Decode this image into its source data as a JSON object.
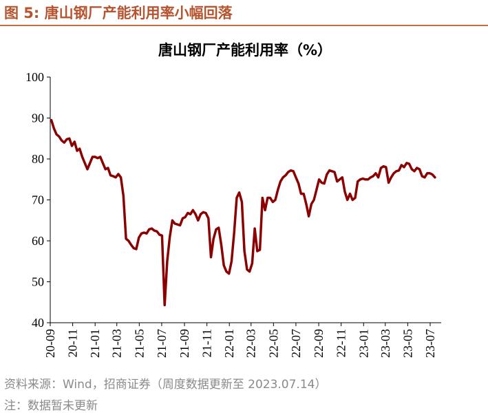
{
  "figure": {
    "title": "图 5: 唐山钢厂产能利用率小幅回落",
    "source": "资料来源：Wind，招商证券（周度数据更新至 2023.07.14）",
    "note": "注：数据暂未更新",
    "accent_color": "#c8693f",
    "title_color": "#b5542f"
  },
  "chart_data": {
    "type": "line",
    "title": "唐山钢厂产能利用率（%）",
    "xlabel": "",
    "ylabel": "",
    "ylim": [
      40,
      100
    ],
    "yticks": [
      40,
      50,
      60,
      70,
      80,
      90,
      100
    ],
    "xlim": [
      "2020-09-01",
      "2023-07-31"
    ],
    "xticks": [
      "20-09",
      "20-11",
      "21-01",
      "21-03",
      "21-05",
      "21-07",
      "21-09",
      "21-11",
      "22-01",
      "22-03",
      "22-05",
      "22-07",
      "22-09",
      "22-11",
      "23-01",
      "23-03",
      "23-05",
      "23-07"
    ],
    "grid": false,
    "legend": "none",
    "series_color": "#8b0000",
    "series": [
      {
        "x": [
          "2020-09-04",
          "2020-09-11",
          "2020-09-18",
          "2020-09-25",
          "2020-10-02",
          "2020-10-09",
          "2020-10-16",
          "2020-10-23",
          "2020-10-30",
          "2020-11-06",
          "2020-11-13",
          "2020-11-20",
          "2020-11-27",
          "2020-12-04",
          "2020-12-11",
          "2020-12-18",
          "2020-12-25",
          "2021-01-01",
          "2021-01-08",
          "2021-01-15",
          "2021-01-22",
          "2021-01-29",
          "2021-02-05",
          "2021-02-12",
          "2021-02-19",
          "2021-02-26",
          "2021-03-05",
          "2021-03-12",
          "2021-03-19",
          "2021-03-26",
          "2021-04-02",
          "2021-04-09",
          "2021-04-16",
          "2021-04-23",
          "2021-04-30",
          "2021-05-07",
          "2021-05-14",
          "2021-05-21",
          "2021-05-28",
          "2021-06-04",
          "2021-06-11",
          "2021-06-18",
          "2021-06-25",
          "2021-07-02",
          "2021-07-09",
          "2021-07-16",
          "2021-07-23",
          "2021-07-30",
          "2021-08-06",
          "2021-08-13",
          "2021-08-20",
          "2021-08-27",
          "2021-09-03",
          "2021-09-10",
          "2021-09-17",
          "2021-09-24",
          "2021-10-01",
          "2021-10-08",
          "2021-10-15",
          "2021-10-22",
          "2021-10-29",
          "2021-11-05",
          "2021-11-12",
          "2021-11-19",
          "2021-11-26",
          "2021-12-03",
          "2021-12-10",
          "2021-12-17",
          "2021-12-24",
          "2021-12-31",
          "2022-01-07",
          "2022-01-14",
          "2022-01-21",
          "2022-01-28",
          "2022-02-04",
          "2022-02-11",
          "2022-02-18",
          "2022-02-25",
          "2022-03-04",
          "2022-03-11",
          "2022-03-18",
          "2022-03-25",
          "2022-04-01",
          "2022-04-08",
          "2022-04-15",
          "2022-04-22",
          "2022-04-29",
          "2022-05-06",
          "2022-05-13",
          "2022-05-20",
          "2022-05-27",
          "2022-06-03",
          "2022-06-10",
          "2022-06-17",
          "2022-06-24",
          "2022-07-01",
          "2022-07-08",
          "2022-07-15",
          "2022-07-22",
          "2022-07-29",
          "2022-08-05",
          "2022-08-12",
          "2022-08-19",
          "2022-08-26",
          "2022-09-02",
          "2022-09-09",
          "2022-09-16",
          "2022-09-23",
          "2022-09-30",
          "2022-10-07",
          "2022-10-14",
          "2022-10-21",
          "2022-10-28",
          "2022-11-04",
          "2022-11-11",
          "2022-11-18",
          "2022-11-25",
          "2022-12-02",
          "2022-12-09",
          "2022-12-16",
          "2022-12-23",
          "2022-12-30",
          "2023-01-06",
          "2023-01-13",
          "2023-01-20",
          "2023-01-27",
          "2023-02-03",
          "2023-02-10",
          "2023-02-17",
          "2023-02-24",
          "2023-03-03",
          "2023-03-10",
          "2023-03-17",
          "2023-03-24",
          "2023-03-31",
          "2023-04-07",
          "2023-04-14",
          "2023-04-21",
          "2023-04-28",
          "2023-05-05",
          "2023-05-12",
          "2023-05-19",
          "2023-05-26",
          "2023-06-02",
          "2023-06-09",
          "2023-06-16",
          "2023-06-23",
          "2023-06-30",
          "2023-07-07",
          "2023-07-14"
        ],
        "values": [
          89.5,
          87.5,
          86.0,
          85.5,
          84.5,
          84.0,
          84.8,
          85.0,
          83.2,
          84.2,
          82.0,
          82.5,
          80.5,
          79.0,
          77.5,
          79.0,
          80.5,
          80.5,
          80.2,
          80.5,
          79.0,
          77.5,
          77.8,
          76.0,
          75.8,
          75.5,
          76.3,
          75.5,
          71.0,
          60.5,
          60.0,
          59.0,
          58.2,
          58.0,
          60.8,
          61.8,
          62.0,
          61.8,
          62.8,
          63.0,
          62.5,
          62.3,
          61.5,
          61.3,
          44.3,
          55.0,
          61.0,
          65.0,
          64.2,
          64.0,
          63.8,
          65.5,
          65.8,
          66.8,
          66.5,
          67.5,
          66.5,
          65.0,
          66.5,
          67.0,
          66.8,
          65.5,
          56.0,
          60.5,
          62.8,
          63.2,
          59.0,
          54.0,
          52.5,
          52.0,
          55.0,
          62.0,
          70.5,
          71.8,
          69.5,
          57.5,
          53.0,
          52.5,
          54.5,
          63.0,
          57.5,
          57.8,
          70.5,
          67.5,
          70.5,
          70.5,
          69.5,
          70.0,
          72.5,
          74.5,
          75.5,
          76.0,
          76.8,
          77.2,
          77.0,
          75.5,
          74.0,
          71.5,
          71.5,
          69.0,
          66.0,
          69.0,
          70.0,
          72.5,
          75.0,
          74.2,
          74.0,
          76.2,
          77.2,
          77.0,
          76.8,
          74.5,
          75.0,
          75.5,
          72.0,
          70.0,
          71.5,
          70.0,
          70.5,
          74.5,
          75.0,
          75.2,
          75.0,
          75.0,
          75.5,
          75.8,
          76.5,
          75.5,
          77.8,
          78.2,
          78.0,
          74.2,
          75.5,
          76.5,
          77.0,
          77.2,
          78.5,
          78.0,
          79.0,
          78.8,
          77.5,
          77.0,
          77.8,
          77.5,
          75.8,
          75.5,
          76.5,
          76.5,
          76.2,
          75.5
        ]
      }
    ]
  }
}
